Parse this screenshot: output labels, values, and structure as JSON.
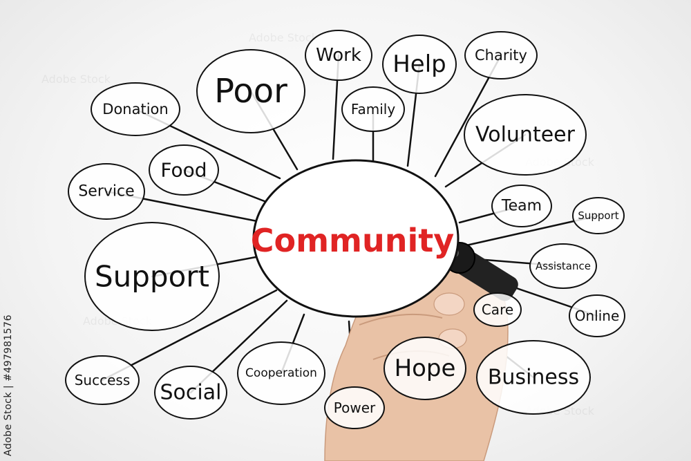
{
  "center": {
    "label": "Community",
    "color": "#e02424"
  },
  "nodes": [
    {
      "id": "work",
      "label": "Work"
    },
    {
      "id": "help",
      "label": "Help"
    },
    {
      "id": "charity",
      "label": "Charity"
    },
    {
      "id": "poor",
      "label": "Poor"
    },
    {
      "id": "family",
      "label": "Family"
    },
    {
      "id": "donation",
      "label": "Donation"
    },
    {
      "id": "volunteer",
      "label": "Volunteer"
    },
    {
      "id": "food",
      "label": "Food"
    },
    {
      "id": "service",
      "label": "Service"
    },
    {
      "id": "team",
      "label": "Team"
    },
    {
      "id": "support-small",
      "label": "Support"
    },
    {
      "id": "support",
      "label": "Support"
    },
    {
      "id": "assistance",
      "label": "Assistance"
    },
    {
      "id": "care",
      "label": "Care"
    },
    {
      "id": "online",
      "label": "Online"
    },
    {
      "id": "success",
      "label": "Success"
    },
    {
      "id": "social",
      "label": "Social"
    },
    {
      "id": "cooperation",
      "label": "Cooperation"
    },
    {
      "id": "hope",
      "label": "Hope"
    },
    {
      "id": "business",
      "label": "Business"
    },
    {
      "id": "power",
      "label": "Power"
    }
  ],
  "stock_id": "Adobe Stock | #497981576",
  "colors": {
    "ink": "#111111",
    "accent": "#e02424"
  },
  "marker": {
    "icon": "marker-pen-icon"
  }
}
